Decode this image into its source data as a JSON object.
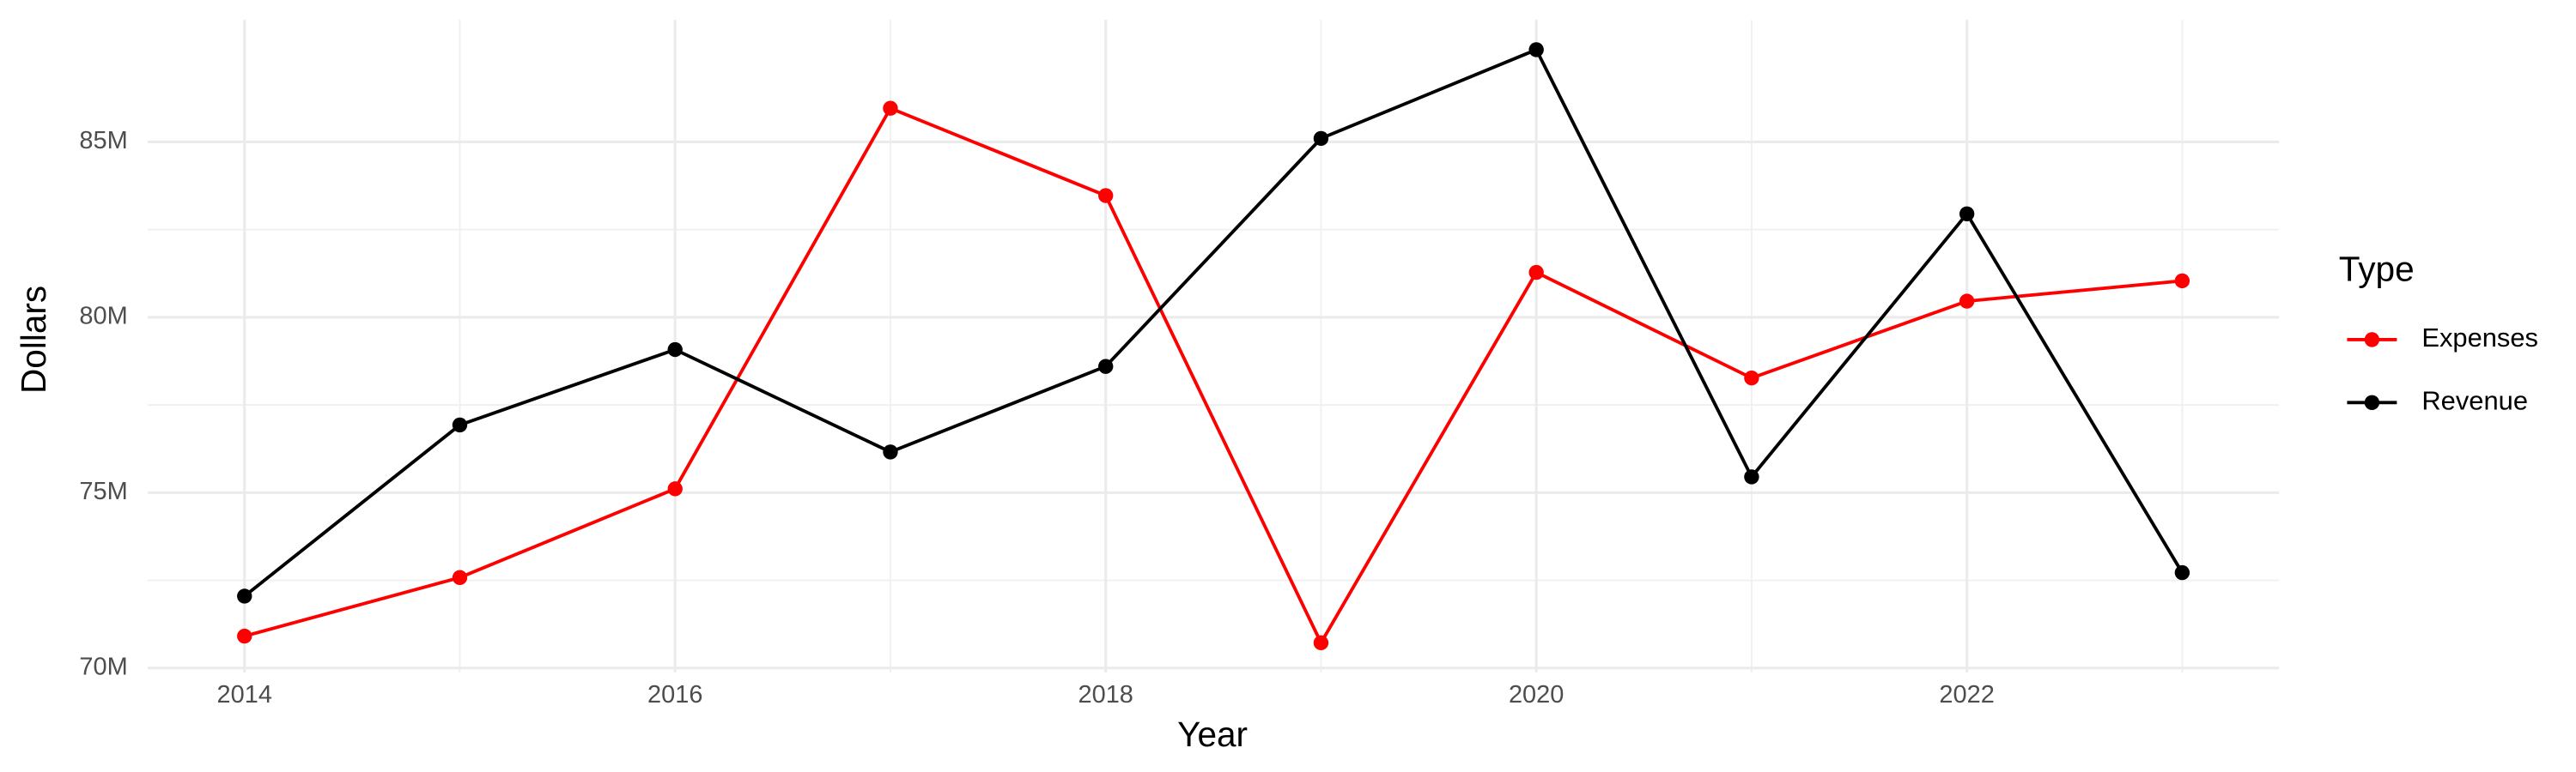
{
  "chart_data": {
    "type": "line",
    "x_label": "Year",
    "y_label": "Dollars",
    "legend_title": "Type",
    "x": [
      2014,
      2015,
      2016,
      2017,
      2018,
      2019,
      2020,
      2021,
      2022,
      2023
    ],
    "series": [
      {
        "name": "Expenses",
        "color": "#ff0000",
        "values": [
          70910000,
          72580000,
          75110000,
          85960000,
          83470000,
          70720000,
          81280000,
          78270000,
          80460000,
          81040000
        ]
      },
      {
        "name": "Revenue",
        "color": "#000000",
        "values": [
          72050000,
          76930000,
          79080000,
          76160000,
          78600000,
          85100000,
          87630000,
          75450000,
          82950000,
          72720000
        ]
      }
    ],
    "xlim": [
      2013.55,
      2023.45
    ],
    "xticks": [
      2014,
      2016,
      2018,
      2020,
      2022
    ],
    "ylim": [
      69870000,
      88480000
    ],
    "yticks": [
      {
        "value": 70000000,
        "label": "70M"
      },
      {
        "value": 75000000,
        "label": "75M"
      },
      {
        "value": 80000000,
        "label": "80M"
      },
      {
        "value": 85000000,
        "label": "85M"
      }
    ],
    "grid": true,
    "legend": "right"
  }
}
